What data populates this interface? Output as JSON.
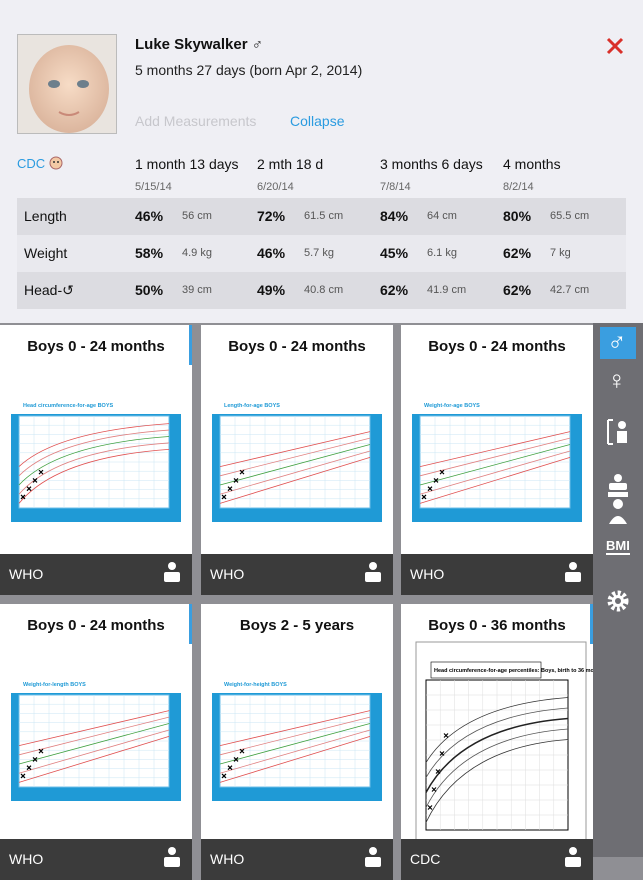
{
  "profile": {
    "name": "Luke Skywalker ♂",
    "age": "5 months 27 days  (born Apr 2, 2014)"
  },
  "actions": {
    "add": "Add Measurements",
    "collapse": "Collapse"
  },
  "table": {
    "source": "CDC",
    "columns": [
      {
        "age": "1 month 13 days",
        "date": "5/15/14"
      },
      {
        "age": "2 mth 18 d",
        "date": "6/20/14"
      },
      {
        "age": "3 months 6 days",
        "date": "7/8/14"
      },
      {
        "age": "4 months",
        "date": "8/2/14"
      }
    ],
    "rows": [
      {
        "label": "Length",
        "cells": [
          {
            "percentile": "46%",
            "measure": "56 cm"
          },
          {
            "percentile": "72%",
            "measure": "61.5 cm"
          },
          {
            "percentile": "84%",
            "measure": "64 cm"
          },
          {
            "percentile": "80%",
            "measure": "65.5 cm"
          }
        ]
      },
      {
        "label": "Weight",
        "cells": [
          {
            "percentile": "58%",
            "measure": "4.9 kg"
          },
          {
            "percentile": "46%",
            "measure": "5.7 kg"
          },
          {
            "percentile": "45%",
            "measure": "6.1 kg"
          },
          {
            "percentile": "62%",
            "measure": "7 kg"
          }
        ]
      },
      {
        "label": "Head-↺",
        "cells": [
          {
            "percentile": "50%",
            "measure": "39 cm"
          },
          {
            "percentile": "49%",
            "measure": "40.8 cm"
          },
          {
            "percentile": "62%",
            "measure": "41.9 cm"
          },
          {
            "percentile": "62%",
            "measure": "42.7 cm"
          }
        ]
      }
    ]
  },
  "cards": [
    {
      "title": "Boys 0 - 24 months",
      "chart_title": "Head circumference-for-age BOYS",
      "source": "WHO"
    },
    {
      "title": "Boys 0 - 24 months",
      "chart_title": "Length-for-age BOYS",
      "source": "WHO"
    },
    {
      "title": "Boys 0 - 24 months",
      "chart_title": "Weight-for-age BOYS",
      "source": "WHO"
    },
    {
      "title": "Boys 0 - 24 months",
      "chart_title": "Weight-for-length BOYS",
      "source": "WHO"
    },
    {
      "title": "Boys 2 - 5 years",
      "chart_title": "Weight-for-height BOYS",
      "source": "WHO"
    },
    {
      "title": "Boys 0 - 36 months",
      "chart_title": "Head circumference-for-age percentiles: Boys, birth to 36 months",
      "source": "CDC"
    }
  ],
  "sidebar": {
    "male": "♂",
    "female": "♀",
    "bmi": "BMI"
  }
}
